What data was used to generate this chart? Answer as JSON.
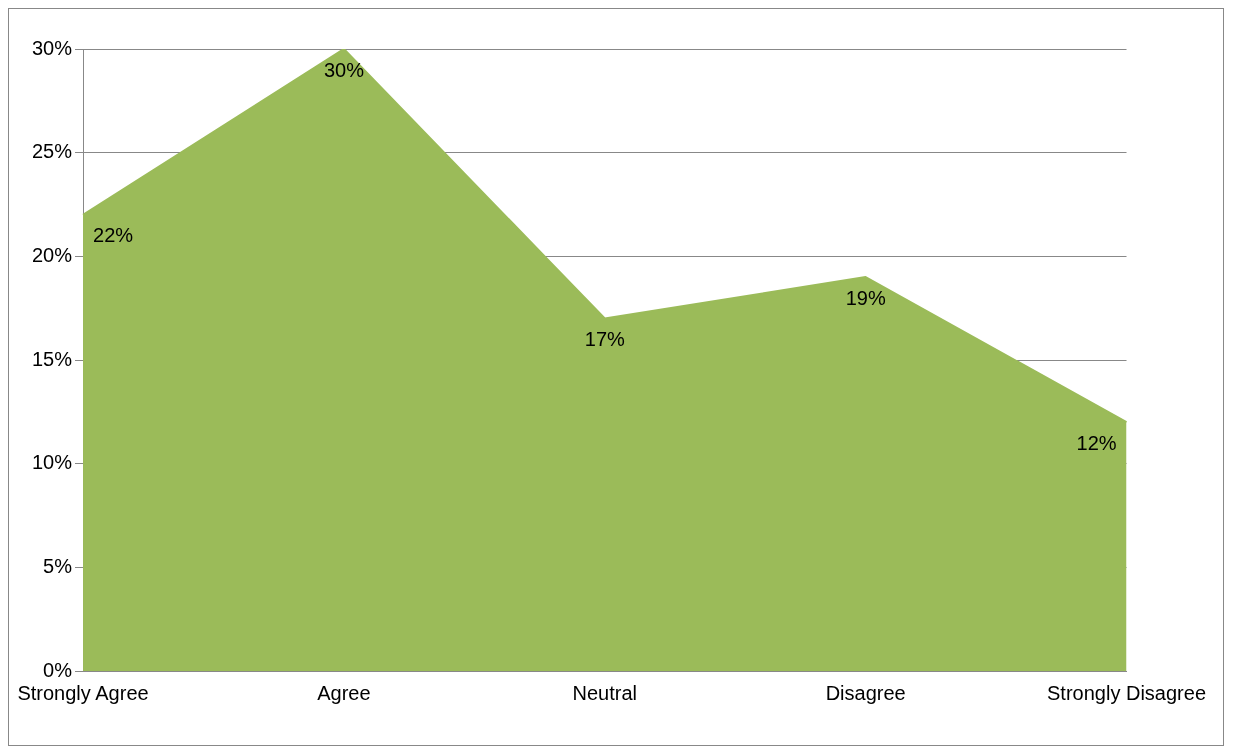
{
  "chart_data": {
    "type": "area",
    "categories": [
      "Strongly Agree",
      "Agree",
      "Neutral",
      "Disagree",
      "Strongly Disagree"
    ],
    "series": [
      {
        "color": "#9bbb59",
        "values": [
          22,
          30,
          17,
          19,
          12
        ],
        "value_labels": [
          "22%",
          "30%",
          "17%",
          "19%",
          "12%"
        ]
      }
    ],
    "ylim": [
      0,
      30
    ],
    "yticks": [
      {
        "value": 0,
        "label": "0%"
      },
      {
        "value": 5,
        "label": "5%"
      },
      {
        "value": 10,
        "label": "10%"
      },
      {
        "value": 15,
        "label": "15%"
      },
      {
        "value": 20,
        "label": "20%"
      },
      {
        "value": 25,
        "label": "25%"
      },
      {
        "value": 30,
        "label": "30%"
      }
    ],
    "grid": "y",
    "legend": false,
    "marker": "none"
  }
}
